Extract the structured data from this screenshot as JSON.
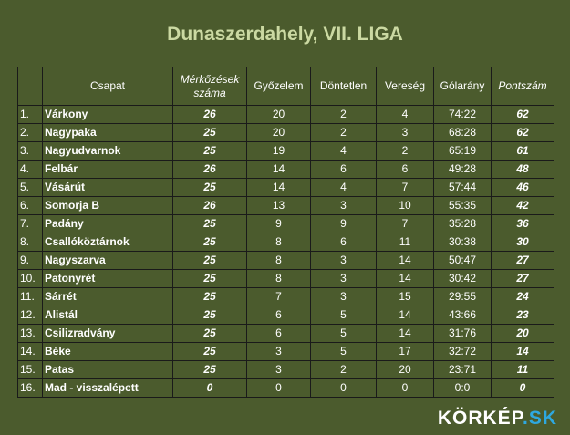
{
  "title": "Dunaszerdahely, VII. LIGA",
  "headers": {
    "rank": "",
    "team": "Csapat",
    "played": "Mérkőzések száma",
    "wins": "Győzelem",
    "draws": "Döntetlen",
    "losses": "Vereség",
    "goals": "Gólarány",
    "points": "Pontszám"
  },
  "rows": [
    {
      "rank": "1.",
      "team": "Várkony",
      "played": "26",
      "wins": "20",
      "draws": "2",
      "losses": "4",
      "goals": "74:22",
      "points": "62"
    },
    {
      "rank": "2.",
      "team": "Nagypaka",
      "played": "25",
      "wins": "20",
      "draws": "2",
      "losses": "3",
      "goals": "68:28",
      "points": "62"
    },
    {
      "rank": "3.",
      "team": "Nagyudvarnok",
      "played": "25",
      "wins": "19",
      "draws": "4",
      "losses": "2",
      "goals": "65:19",
      "points": "61"
    },
    {
      "rank": "4.",
      "team": "Felbár",
      "played": "26",
      "wins": "14",
      "draws": "6",
      "losses": "6",
      "goals": "49:28",
      "points": "48"
    },
    {
      "rank": "5.",
      "team": "Vásárút",
      "played": "25",
      "wins": "14",
      "draws": "4",
      "losses": "7",
      "goals": "57:44",
      "points": "46"
    },
    {
      "rank": "6.",
      "team": "Somorja B",
      "played": "26",
      "wins": "13",
      "draws": "3",
      "losses": "10",
      "goals": "55:35",
      "points": "42"
    },
    {
      "rank": "7.",
      "team": "Padány",
      "played": "25",
      "wins": "9",
      "draws": "9",
      "losses": "7",
      "goals": "35:28",
      "points": "36"
    },
    {
      "rank": "8.",
      "team": "Csallóköztárnok",
      "played": "25",
      "wins": "8",
      "draws": "6",
      "losses": "11",
      "goals": "30:38",
      "points": "30"
    },
    {
      "rank": "9.",
      "team": "Nagyszarva",
      "played": "25",
      "wins": "8",
      "draws": "3",
      "losses": "14",
      "goals": "50:47",
      "points": "27"
    },
    {
      "rank": "10.",
      "team": "Patonyrét",
      "played": "25",
      "wins": "8",
      "draws": "3",
      "losses": "14",
      "goals": "30:42",
      "points": "27"
    },
    {
      "rank": "11.",
      "team": "Sárrét",
      "played": "25",
      "wins": "7",
      "draws": "3",
      "losses": "15",
      "goals": "29:55",
      "points": "24"
    },
    {
      "rank": "12.",
      "team": "Alistál",
      "played": "25",
      "wins": "6",
      "draws": "5",
      "losses": "14",
      "goals": "43:66",
      "points": "23"
    },
    {
      "rank": "13.",
      "team": "Csilizradvány",
      "played": "25",
      "wins": "6",
      "draws": "5",
      "losses": "14",
      "goals": "31:76",
      "points": "20"
    },
    {
      "rank": "14.",
      "team": "Béke",
      "played": "25",
      "wins": "3",
      "draws": "5",
      "losses": "17",
      "goals": "32:72",
      "points": "14"
    },
    {
      "rank": "15.",
      "team": "Patas",
      "played": "25",
      "wins": "3",
      "draws": "2",
      "losses": "20",
      "goals": "23:71",
      "points": "11"
    },
    {
      "rank": "16.",
      "team": "Mad - visszalépett",
      "played": "0",
      "wins": "0",
      "draws": "0",
      "losses": "0",
      "goals": "0:0",
      "points": "0"
    }
  ],
  "logo": {
    "name": "KÖRKÉP",
    "domain": ".SK"
  },
  "colors": {
    "background": "#4b5b2d",
    "title": "#cbd9a2",
    "points": "#92d050",
    "logo_domain": "#2ea8e0"
  }
}
